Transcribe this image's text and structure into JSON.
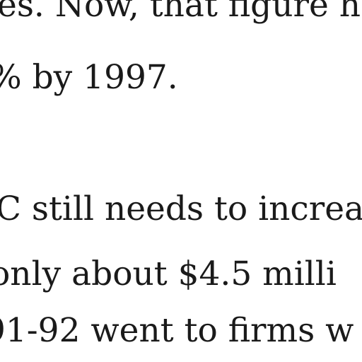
{
  "article": {
    "paragraphs": [
      {
        "lines": [
          "es. Now, that figure ha",
          "% by 1997."
        ]
      },
      {
        "lines": [
          "C still needs to increa",
          " only about $4.5 milli",
          "91-92 went to firms w"
        ]
      }
    ]
  }
}
